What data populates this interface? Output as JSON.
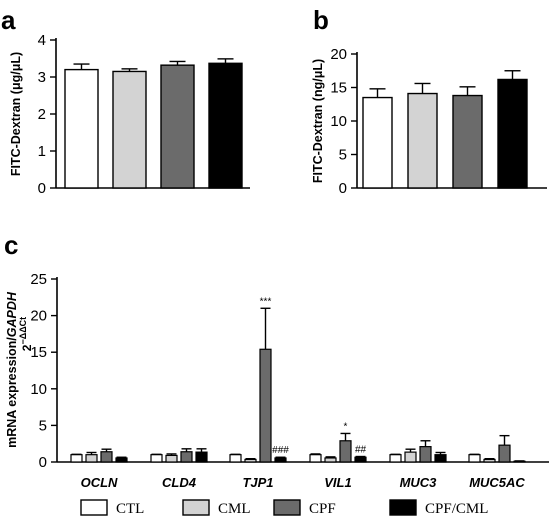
{
  "colors": {
    "CTL": "#ffffff",
    "CML": "#d3d3d3",
    "CPF": "#6b6b6b",
    "CPF/CML": "#000000"
  },
  "legend": [
    "CTL",
    "CML",
    "CPF",
    "CPF/CML"
  ],
  "chart_data": [
    {
      "panel": "a",
      "type": "bar",
      "ylabel": "FITC-Dextran (μg/μL)",
      "ylim": [
        0,
        4
      ],
      "yticks": [
        "0",
        "1",
        "2",
        "3",
        "4"
      ],
      "categories": [
        "CTL",
        "CML",
        "CPF",
        "CPF/CML"
      ],
      "values": [
        3.2,
        3.15,
        3.32,
        3.37
      ],
      "errors": [
        0.15,
        0.07,
        0.1,
        0.12
      ]
    },
    {
      "panel": "b",
      "type": "bar",
      "ylabel": "FITC-Dextran (ng/μL)",
      "ylim": [
        0,
        20
      ],
      "yticks": [
        "0",
        "5",
        "10",
        "15",
        "20"
      ],
      "categories": [
        "CTL",
        "CML",
        "CPF",
        "CPF/CML"
      ],
      "values": [
        13.5,
        14.1,
        13.8,
        16.2
      ],
      "errors": [
        1.3,
        1.5,
        1.3,
        1.3
      ]
    },
    {
      "panel": "c",
      "type": "bar",
      "ylabel_main": "mRNA expression/",
      "ylabel_italic": "GAPDH",
      "ylabel_sub_base": "2",
      "ylabel_sub_exp": "−ΔΔCt",
      "ylim": [
        0,
        25
      ],
      "yticks": [
        "0",
        "5",
        "10",
        "15",
        "20",
        "25"
      ],
      "categories": [
        "OCLN",
        "CLD4",
        "TJP1",
        "VIL1",
        "MUC3",
        "MUC5AC"
      ],
      "series": [
        {
          "name": "CTL",
          "values": [
            1.0,
            1.0,
            1.0,
            1.0,
            1.0,
            1.0
          ],
          "errors": [
            0.05,
            0.05,
            0.05,
            0.1,
            0.05,
            0.05
          ]
        },
        {
          "name": "CML",
          "values": [
            1.0,
            0.9,
            0.35,
            0.55,
            1.35,
            0.35
          ],
          "errors": [
            0.3,
            0.2,
            0.1,
            0.15,
            0.4,
            0.1
          ]
        },
        {
          "name": "CPF",
          "values": [
            1.4,
            1.4,
            15.4,
            2.9,
            2.1,
            2.3
          ],
          "errors": [
            0.35,
            0.4,
            5.6,
            1.0,
            0.8,
            1.3
          ]
        },
        {
          "name": "CPF/CML",
          "values": [
            0.55,
            1.35,
            0.55,
            0.65,
            1.0,
            0.1
          ],
          "errors": [
            0.1,
            0.45,
            0.1,
            0.1,
            0.3,
            0.05
          ]
        }
      ],
      "annotations": [
        {
          "category": "TJP1",
          "series": "CPF",
          "text": "***"
        },
        {
          "category": "TJP1",
          "series": "CPF/CML",
          "text": "###"
        },
        {
          "category": "VIL1",
          "series": "CPF",
          "text": "*"
        },
        {
          "category": "VIL1",
          "series": "CPF/CML",
          "text": "##"
        }
      ]
    }
  ]
}
